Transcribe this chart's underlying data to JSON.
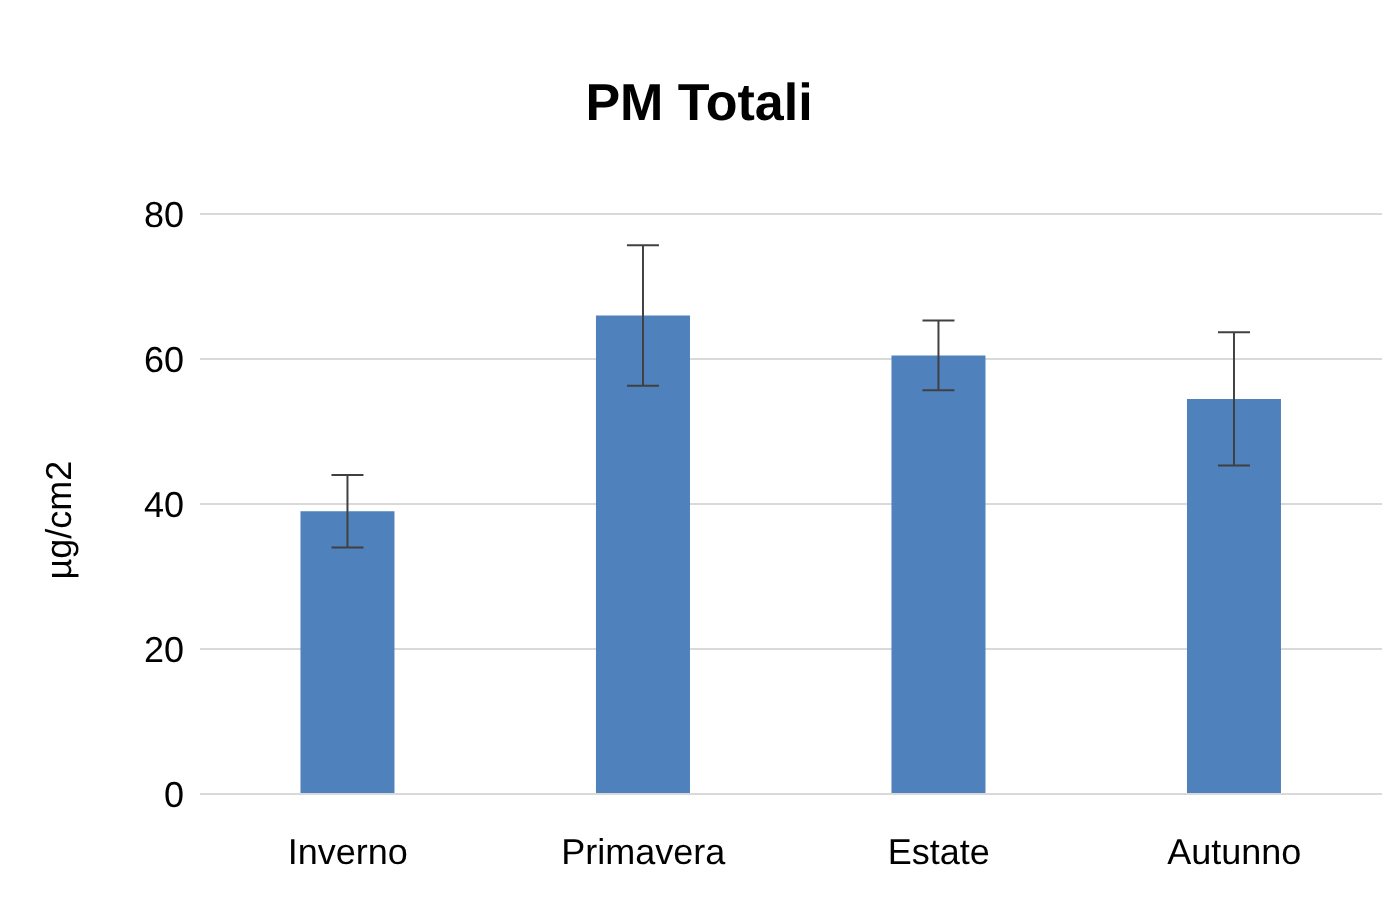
{
  "chart_data": {
    "type": "bar",
    "title": "PM Totali",
    "ylabel": "µg/cm2",
    "categories": [
      "Inverno",
      "Primavera",
      "Estate",
      "Autunno"
    ],
    "values": [
      39,
      66,
      60.5,
      54.5
    ],
    "errors": [
      5,
      9.7,
      4.8,
      9.2
    ],
    "color": "#4f81bd",
    "ylim": [
      0,
      80
    ],
    "yticks": [
      0,
      20,
      40,
      60,
      80
    ],
    "grid": "y",
    "legend": false
  }
}
